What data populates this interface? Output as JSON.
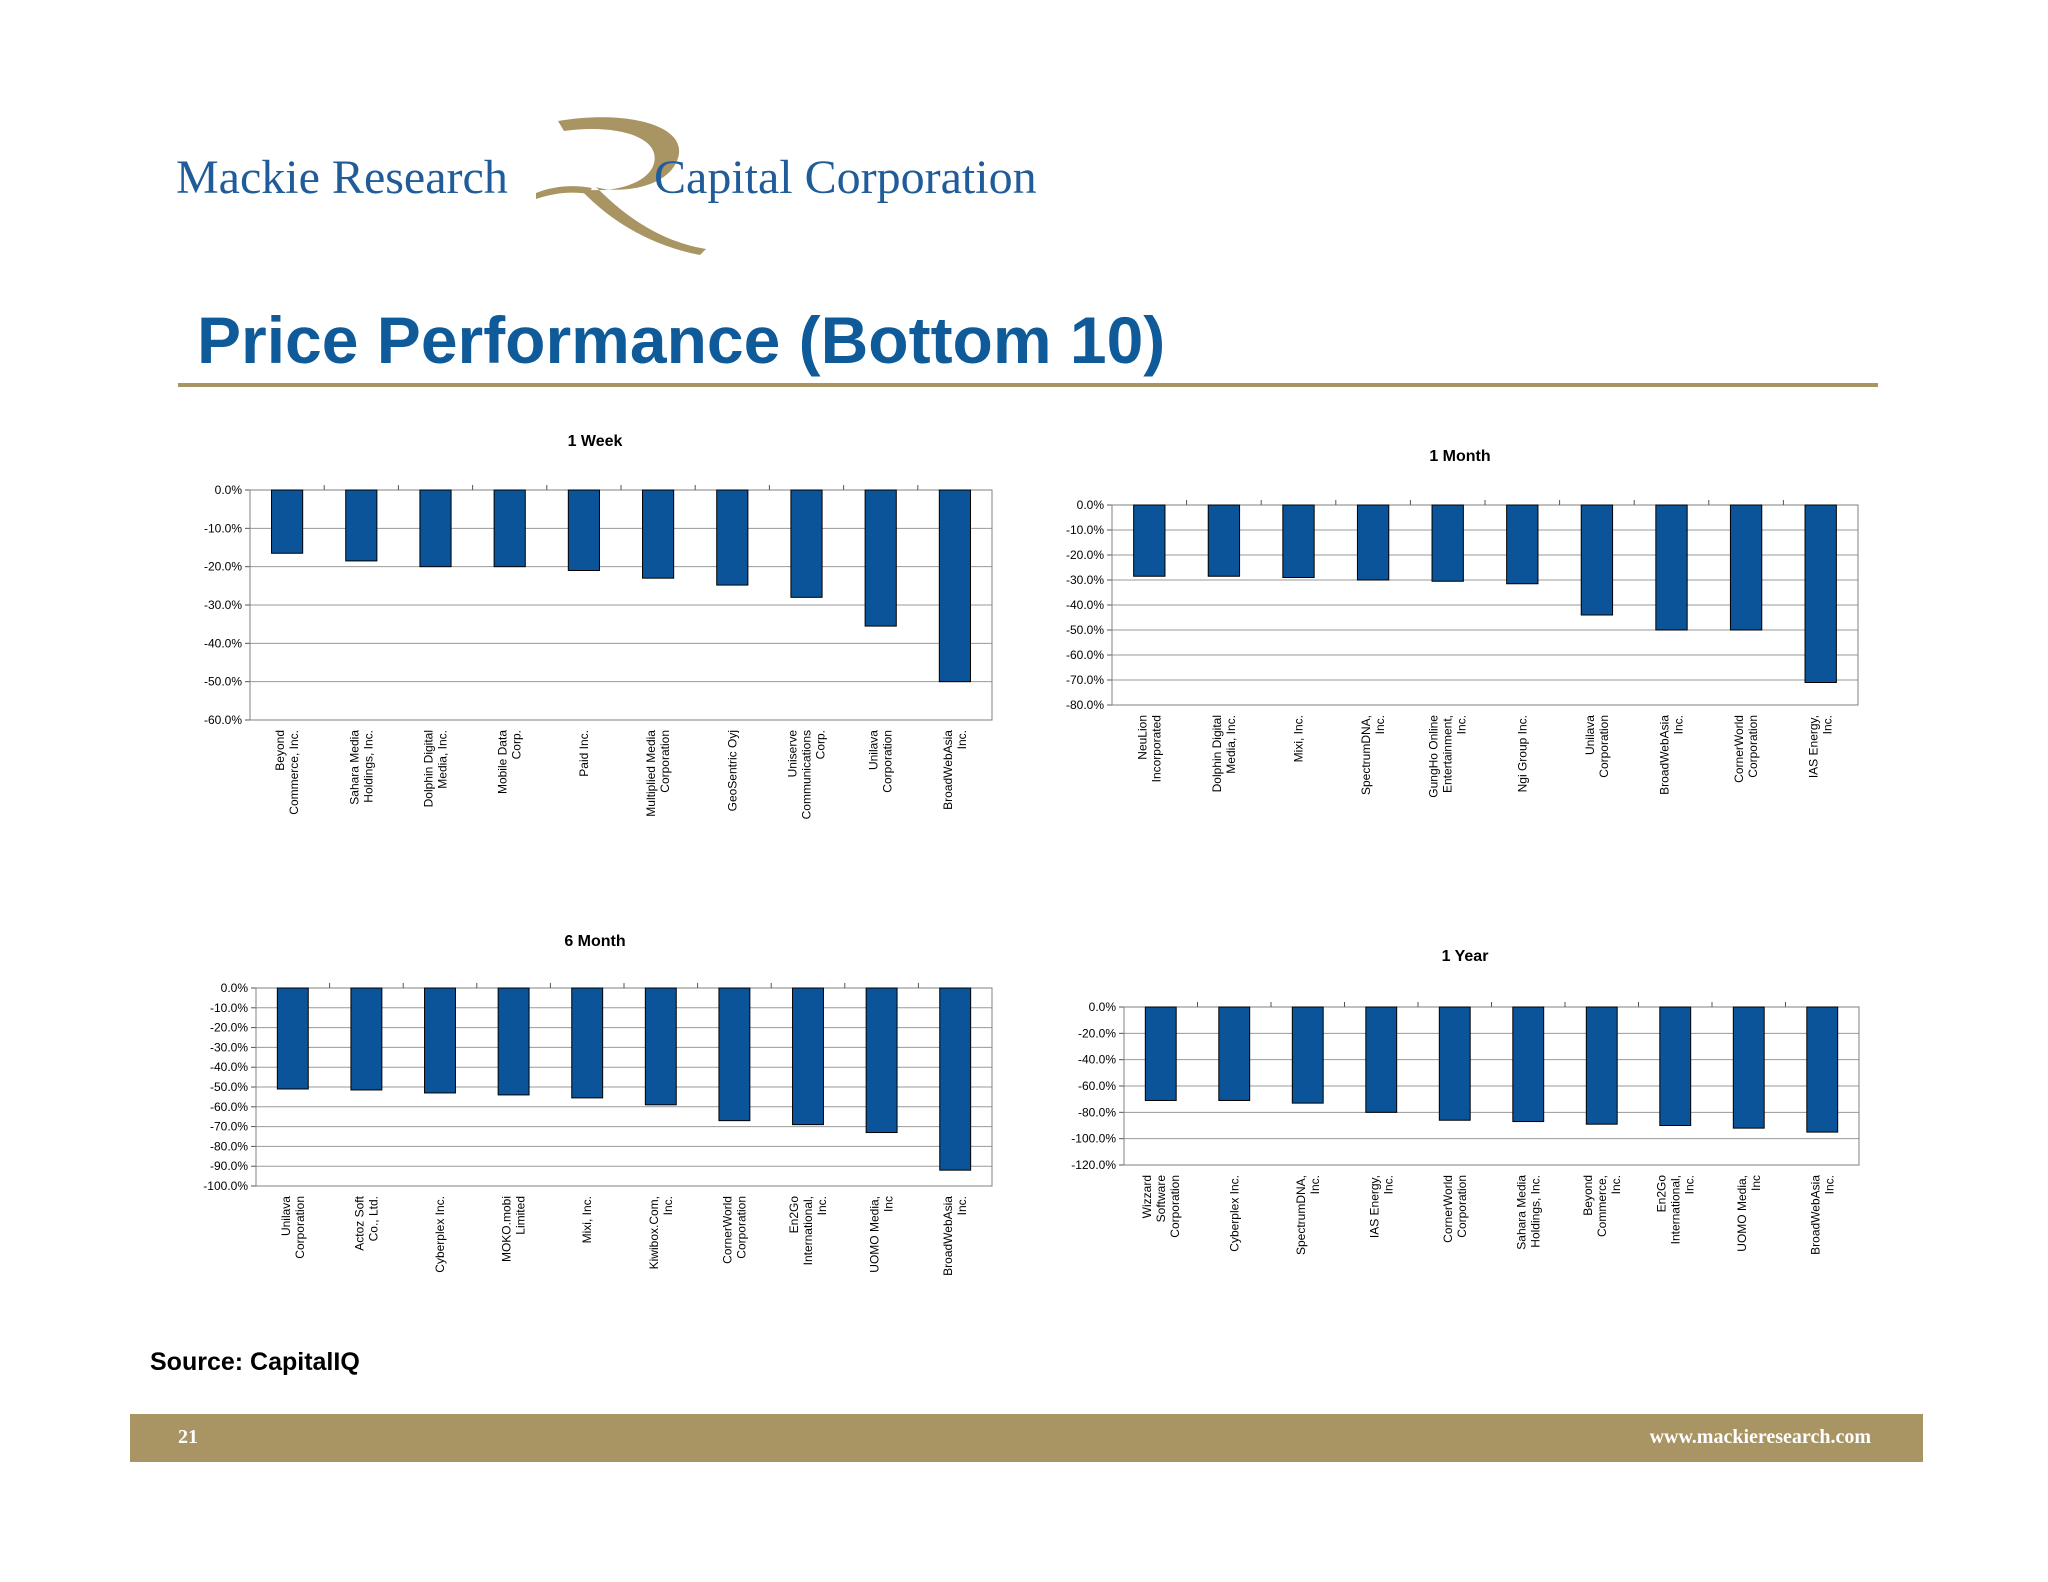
{
  "header": {
    "logo_left": "Mackie Research",
    "logo_right": "Capital Corporation",
    "title": "Price Performance (Bottom 10)"
  },
  "colors": {
    "bar": "#0b5499",
    "brand_blue": "#1f5c99",
    "gold": "#a89563"
  },
  "chart_data": [
    {
      "type": "bar",
      "title": "1 Week",
      "xlabel": "",
      "ylabel": "",
      "ylim": [
        -60,
        0
      ],
      "yticks": [
        "0.0%",
        "-10.0%",
        "-20.0%",
        "-30.0%",
        "-40.0%",
        "-50.0%",
        "-60.0%"
      ],
      "categories": [
        [
          "Beyond",
          "Commerce, Inc."
        ],
        [
          "Sahara Media",
          "Holdings, Inc."
        ],
        [
          "Dolphin Digital",
          "Media, Inc."
        ],
        [
          "Mobile Data",
          "Corp."
        ],
        [
          "Paid Inc."
        ],
        [
          "Multiplied Media",
          "Corporation"
        ],
        [
          "GeoSentric Oyj"
        ],
        [
          "Uniserve",
          "Communications",
          "Corp."
        ],
        [
          "Unilava",
          "Corporation"
        ],
        [
          "BroadWebAsia",
          "Inc."
        ]
      ],
      "values": [
        -16.5,
        -18.5,
        -20,
        -20,
        -21,
        -23,
        -24.8,
        -28,
        -35.5,
        -50
      ],
      "grid": true
    },
    {
      "type": "bar",
      "title": "1 Month",
      "xlabel": "",
      "ylabel": "",
      "ylim": [
        -80,
        0
      ],
      "yticks": [
        "0.0%",
        "-10.0%",
        "-20.0%",
        "-30.0%",
        "-40.0%",
        "-50.0%",
        "-60.0%",
        "-70.0%",
        "-80.0%"
      ],
      "categories": [
        [
          "NeuLion",
          "Incorporated"
        ],
        [
          "Dolphin Digital",
          "Media, Inc."
        ],
        [
          "Mixi, Inc."
        ],
        [
          "SpectrumDNA,",
          "Inc."
        ],
        [
          "GungHo Online",
          "Entertainment,",
          "Inc."
        ],
        [
          "Ngi Group Inc."
        ],
        [
          "Unilava",
          "Corporation"
        ],
        [
          "BroadWebAsia",
          "Inc."
        ],
        [
          "CornerWorld",
          "Corporation"
        ],
        [
          "IAS Energy,",
          "Inc."
        ]
      ],
      "values": [
        -28.5,
        -28.5,
        -29,
        -30,
        -30.5,
        -31.5,
        -44,
        -50,
        -50,
        -71
      ],
      "grid": true
    },
    {
      "type": "bar",
      "title": "6 Month",
      "xlabel": "",
      "ylabel": "",
      "ylim": [
        -100,
        0
      ],
      "yticks": [
        "0.0%",
        "-10.0%",
        "-20.0%",
        "-30.0%",
        "-40.0%",
        "-50.0%",
        "-60.0%",
        "-70.0%",
        "-80.0%",
        "-90.0%",
        "-100.0%"
      ],
      "categories": [
        [
          "Unilava",
          "Corporation"
        ],
        [
          "Actoz Soft",
          "Co., Ltd."
        ],
        [
          "Cyberplex Inc."
        ],
        [
          "MOKO.mobi",
          "Limited"
        ],
        [
          "Mixi, Inc."
        ],
        [
          "Kiwibox.Com,",
          "Inc."
        ],
        [
          "CornerWorld",
          "Corporation"
        ],
        [
          "En2Go",
          "International,",
          "Inc."
        ],
        [
          "UOMO Media,",
          "Inc"
        ],
        [
          "BroadWebAsia",
          "Inc."
        ]
      ],
      "values": [
        -51,
        -51.5,
        -53,
        -54,
        -55.5,
        -59,
        -67,
        -69,
        -73,
        -92
      ],
      "grid": true
    },
    {
      "type": "bar",
      "title": "1 Year",
      "xlabel": "",
      "ylabel": "",
      "ylim": [
        -120,
        0
      ],
      "yticks": [
        "0.0%",
        "-20.0%",
        "-40.0%",
        "-60.0%",
        "-80.0%",
        "-100.0%",
        "-120.0%"
      ],
      "categories": [
        [
          "Wizzard",
          "Software",
          "Corporation"
        ],
        [
          "Cyberplex Inc."
        ],
        [
          "SpectrumDNA,",
          "Inc."
        ],
        [
          "IAS Energy,",
          "Inc."
        ],
        [
          "CornerWorld",
          "Corporation"
        ],
        [
          "Sahara Media",
          "Holdings, Inc."
        ],
        [
          "Beyond",
          "Commerce,",
          "Inc."
        ],
        [
          "En2Go",
          "International,",
          "Inc."
        ],
        [
          "UOMO Media,",
          "Inc"
        ],
        [
          "BroadWebAsia",
          "Inc."
        ]
      ],
      "values": [
        -71,
        -71,
        -73,
        -80,
        -86,
        -87,
        -89,
        -90,
        -92,
        -95
      ],
      "grid": true
    }
  ],
  "footer": {
    "source": "Source: CapitalIQ",
    "page": "21",
    "url": "www.mackieresearch.com"
  }
}
